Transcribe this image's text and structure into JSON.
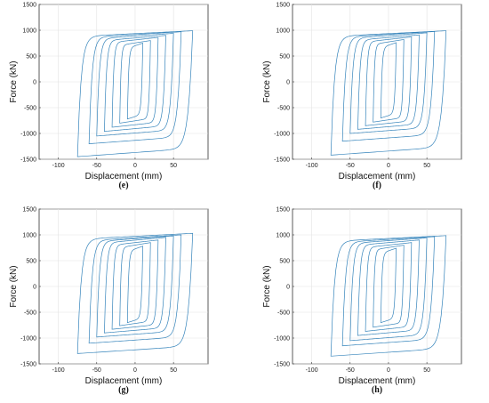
{
  "chart_data": [
    {
      "type": "line",
      "panel_label": "(e)",
      "xlabel": "Displacement (mm)",
      "ylabel": "Force (kN)",
      "xlim": [
        -125,
        95
      ],
      "ylim": [
        -1500,
        1500
      ],
      "xticks": [
        -100,
        -50,
        0,
        50
      ],
      "yticks": [
        -1500,
        -1000,
        -500,
        0,
        500,
        1000,
        1500
      ],
      "grid": true,
      "color": "#1f77b4",
      "loop_amplitudes_mm": [
        10,
        20,
        30,
        40,
        50,
        60,
        75
      ],
      "loop_peak_force_pos_kN": [
        750,
        800,
        860,
        900,
        940,
        970,
        990
      ],
      "loop_peak_force_neg_kN": [
        -720,
        -800,
        -880,
        -960,
        -1050,
        -1200,
        -1450
      ]
    },
    {
      "type": "line",
      "panel_label": "(f)",
      "xlabel": "Displacement (mm)",
      "ylabel": "Force (kN)",
      "xlim": [
        -125,
        95
      ],
      "ylim": [
        -1500,
        1500
      ],
      "xticks": [
        -100,
        -50,
        0,
        50
      ],
      "yticks": [
        -1500,
        -1000,
        -500,
        0,
        500,
        1000,
        1500
      ],
      "grid": true,
      "color": "#1f77b4",
      "loop_amplitudes_mm": [
        10,
        20,
        30,
        40,
        50,
        60,
        75
      ],
      "loop_peak_force_pos_kN": [
        760,
        820,
        870,
        910,
        950,
        975,
        990
      ],
      "loop_peak_force_neg_kN": [
        -700,
        -780,
        -850,
        -920,
        -1000,
        -1150,
        -1420
      ]
    },
    {
      "type": "line",
      "panel_label": "(g)",
      "xlabel": "Displacement (mm)",
      "ylabel": "Force (kN)",
      "xlim": [
        -125,
        95
      ],
      "ylim": [
        -1500,
        1500
      ],
      "xticks": [
        -100,
        -50,
        0,
        50
      ],
      "yticks": [
        -1500,
        -1000,
        -500,
        0,
        500,
        1000,
        1500
      ],
      "grid": true,
      "color": "#1f77b4",
      "loop_amplitudes_mm": [
        10,
        20,
        30,
        40,
        50,
        60,
        75
      ],
      "loop_peak_force_pos_kN": [
        780,
        850,
        900,
        950,
        980,
        1000,
        1030
      ],
      "loop_peak_force_neg_kN": [
        -700,
        -760,
        -830,
        -900,
        -980,
        -1100,
        -1300
      ]
    },
    {
      "type": "line",
      "panel_label": "(h)",
      "xlabel": "Displacement (mm)",
      "ylabel": "Force (kN)",
      "xlim": [
        -125,
        95
      ],
      "ylim": [
        -1500,
        1500
      ],
      "xticks": [
        -100,
        -50,
        0,
        50
      ],
      "yticks": [
        -1500,
        -1000,
        -500,
        0,
        500,
        1000,
        1500
      ],
      "grid": true,
      "color": "#1f77b4",
      "loop_amplitudes_mm": [
        10,
        20,
        30,
        40,
        50,
        60,
        75
      ],
      "loop_peak_force_pos_kN": [
        740,
        800,
        850,
        900,
        940,
        965,
        985
      ],
      "loop_peak_force_neg_kN": [
        -700,
        -790,
        -870,
        -950,
        -1050,
        -1150,
        -1350
      ]
    }
  ]
}
